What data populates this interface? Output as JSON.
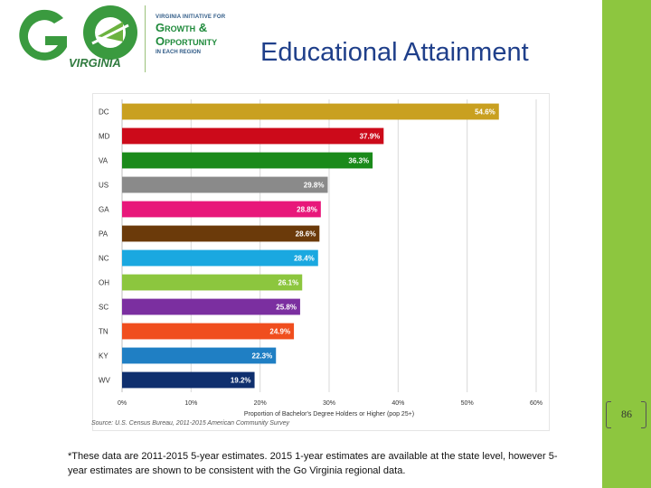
{
  "logo": {
    "mark": "GO",
    "state": "VIRGINIA",
    "tagline_top": "VIRGINIA INITIATIVE FOR",
    "tagline_growth": "Growth &",
    "tagline_opportunity": "Opportunity",
    "tagline_bottom": "IN EACH REGION"
  },
  "title": "Educational Attainment",
  "chart_data": {
    "type": "bar",
    "orientation": "horizontal",
    "categories": [
      "DC",
      "MD",
      "VA",
      "US",
      "GA",
      "PA",
      "NC",
      "OH",
      "SC",
      "TN",
      "KY",
      "WV"
    ],
    "values": [
      54.6,
      37.9,
      36.3,
      29.8,
      28.8,
      28.6,
      28.4,
      26.1,
      25.8,
      24.9,
      22.3,
      19.2
    ],
    "value_labels": [
      "54.6%",
      "37.9%",
      "36.3%",
      "29.8%",
      "28.8%",
      "28.6%",
      "28.4%",
      "26.1%",
      "25.8%",
      "24.9%",
      "22.3%",
      "19.2%"
    ],
    "colors": [
      "#c9a020",
      "#cc0a1a",
      "#1a8a1a",
      "#8a8a8a",
      "#e8177a",
      "#6b3a0a",
      "#1aa8e0",
      "#8cc63e",
      "#7b2fa0",
      "#f04e1e",
      "#1f7fc4",
      "#0f2f6e"
    ],
    "xlim": [
      0,
      60
    ],
    "x_ticks": [
      "0%",
      "10%",
      "20%",
      "30%",
      "40%",
      "50%",
      "60%"
    ],
    "x_tick_values": [
      0,
      10,
      20,
      30,
      40,
      50,
      60
    ],
    "xlabel": "Proportion of Bachelor's Degree Holders or Higher (pop 25+)",
    "grid": true
  },
  "source": "Source: U.S. Census Bureau, 2011-2015 American Community Survey",
  "footnote": "*These data are 2011-2015 5-year estimates. 2015 1-year estimates are available at the state level, however 5-year estimates are shown to be consistent with the Go Virginia regional data.",
  "page_number": "86"
}
